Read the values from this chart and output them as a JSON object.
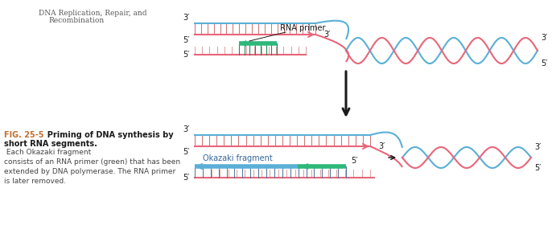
{
  "bg_color": "#ffffff",
  "blue": "#5bafd6",
  "pink": "#e8667a",
  "green": "#2db87a",
  "dark": "#1a1a1a",
  "text_gray": "#555555",
  "orange_text": "#c07030",
  "title_text1": "DNA Replication, Repair, and",
  "title_text2": "Recombination",
  "rna_primer_label": "RNA primer",
  "okazaki_label": "Okazaki fragment",
  "fig_bold1": "FIG. 25-5",
  "fig_bold2": "  Priming of DNA synthesis by",
  "fig_bold3": "short RNA segments.",
  "fig_normal": " Each Okazaki fragment\nconsists of an RNA primer (green) that has been\nextended by DNA polymerase. The RNA primer\nis later removed.",
  "label_3prime": "3′",
  "label_5prime": "5′"
}
